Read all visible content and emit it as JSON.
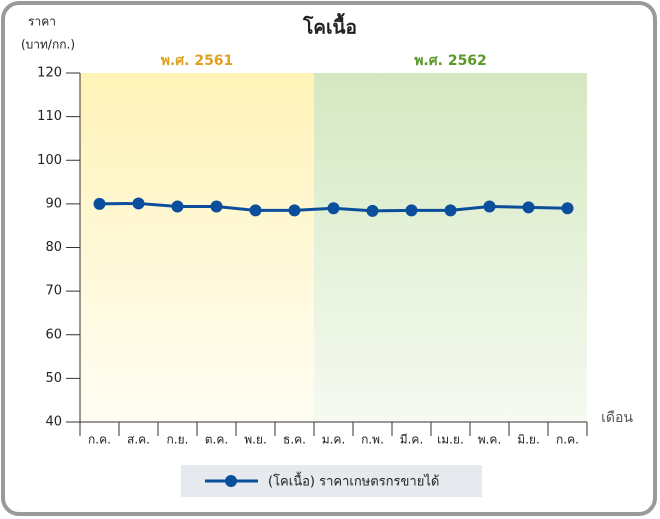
{
  "chart_data": {
    "type": "line",
    "title": "โคเนื้อ",
    "ylabel": [
      "ราคา",
      "(บาท/กก.)"
    ],
    "xlabel": "เดือน",
    "annotations": [
      {
        "text": "พ.ศ. 2561",
        "color": "#e0a020"
      },
      {
        "text": "พ.ศ. 2562",
        "color": "#5a9a2a"
      }
    ],
    "categories": [
      "ก.ค.",
      "ส.ค.",
      "ก.ย.",
      "ต.ค.",
      "พ.ย.",
      "ธ.ค.",
      "ม.ค.",
      "ก.พ.",
      "มี.ค.",
      "เม.ย.",
      "พ.ค.",
      "มิ.ย.",
      "ก.ค."
    ],
    "series": [
      {
        "name": "(โคเนื้อ) ราคาเกษตรกรขายได้",
        "color": "#0b4f9c",
        "values": [
          90,
          90.1,
          89.4,
          89.4,
          88.5,
          88.5,
          89,
          88.4,
          88.5,
          88.5,
          89.4,
          89.2,
          89
        ]
      }
    ],
    "ylim": [
      40,
      120
    ],
    "yticks": [
      40,
      50,
      60,
      70,
      80,
      90,
      100,
      110,
      120
    ],
    "grid": false
  }
}
